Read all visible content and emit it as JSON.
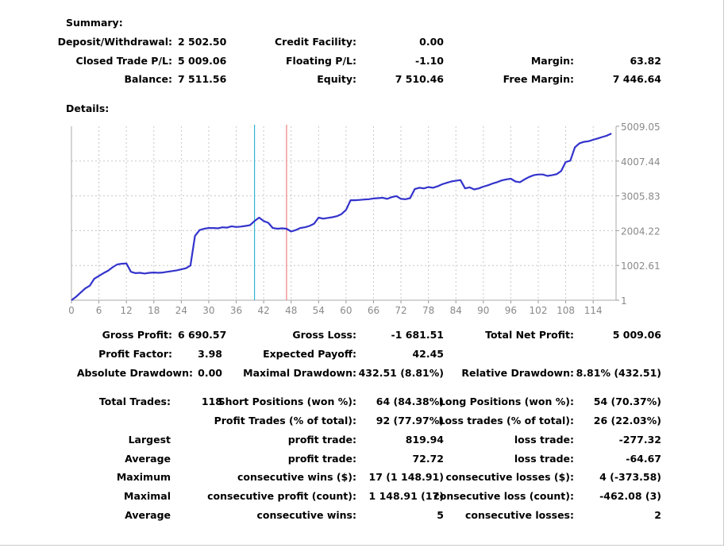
{
  "summary": {
    "heading": "Summary:",
    "deposit_label": "Deposit/Withdrawal:",
    "deposit_value": "2 502.50",
    "credit_label": "Credit Facility:",
    "credit_value": "0.00",
    "closed_label": "Closed Trade P/L:",
    "closed_value": "5 009.06",
    "floating_label": "Floating P/L:",
    "floating_value": "-1.10",
    "margin_label": "Margin:",
    "margin_value": "63.82",
    "balance_label": "Balance:",
    "balance_value": "7 511.56",
    "equity_label": "Equity:",
    "equity_value": "7 510.46",
    "free_margin_label": "Free Margin:",
    "free_margin_value": "7 446.64"
  },
  "details": {
    "heading": "Details:",
    "gross_profit_label": "Gross Profit:",
    "gross_profit_value": "6 690.57",
    "gross_loss_label": "Gross Loss:",
    "gross_loss_value": "-1 681.51",
    "net_profit_label": "Total Net Profit:",
    "net_profit_value": "5 009.06",
    "profit_factor_label": "Profit Factor:",
    "profit_factor_value": "3.98",
    "expected_payoff_label": "Expected Payoff:",
    "expected_payoff_value": "42.45",
    "abs_dd_label": "Absolute Drawdown:",
    "abs_dd_value": "0.00",
    "max_dd_label": "Maximal Drawdown:",
    "max_dd_value": "432.51 (8.81%)",
    "rel_dd_label": "Relative Drawdown:",
    "rel_dd_value": "8.81% (432.51)",
    "total_trades_label": "Total Trades:",
    "total_trades_value": "118",
    "short_label": "Short Positions (won %):",
    "short_value": "64 (84.38%)",
    "long_label": "Long Positions (won %):",
    "long_value": "54 (70.37%)",
    "profit_trades_label": "Profit Trades (% of total):",
    "profit_trades_value": "92 (77.97%)",
    "loss_trades_label": "Loss trades (% of total):",
    "loss_trades_value": "26 (22.03%)",
    "largest_label": "Largest",
    "largest_profit_label": "profit trade:",
    "largest_profit_value": "819.94",
    "largest_loss_label": "loss trade:",
    "largest_loss_value": "-277.32",
    "average_label": "Average",
    "average_profit_label": "profit trade:",
    "average_profit_value": "72.72",
    "average_loss_label": "loss trade:",
    "average_loss_value": "-64.67",
    "maximum_label": "Maximum",
    "max_wins_label": "consecutive wins ($):",
    "max_wins_value": "17 (1 148.91)",
    "max_losses_label": "consecutive losses ($):",
    "max_losses_value": "4 (-373.58)",
    "maximal_label": "Maximal",
    "maximal_profit_label": "consecutive profit (count):",
    "maximal_profit_value": "1 148.91 (17)",
    "maximal_loss_label": "consecutive loss (count):",
    "maximal_loss_value": "-462.08 (3)",
    "average2_label": "Average",
    "avg_wins_label": "consecutive wins:",
    "avg_wins_value": "5",
    "avg_losses_label": "consecutive losses:",
    "avg_losses_value": "2"
  },
  "colors": {
    "line": "#3333cc",
    "marker1": "#33b5d4",
    "marker2": "#f08080",
    "grid": "#c8c8c8",
    "axis_text": "#8a8a8a"
  },
  "chart_data": {
    "type": "line",
    "xlabel": "",
    "ylabel": "",
    "xlim": [
      0,
      119
    ],
    "ylim": [
      1,
      5009.05
    ],
    "x_ticks": [
      "0",
      "6",
      "12",
      "18",
      "24",
      "30",
      "36",
      "42",
      "48",
      "54",
      "60",
      "66",
      "72",
      "78",
      "84",
      "90",
      "96",
      "102",
      "108",
      "114"
    ],
    "y_ticks": [
      "5009.05",
      "4007.44",
      "3005.83",
      "2004.22",
      "1002.61",
      "1"
    ],
    "vertical_markers": [
      40,
      47
    ],
    "grid": true,
    "series": [
      {
        "x": [
          0,
          1,
          2,
          3,
          4,
          5,
          6,
          7,
          8,
          9,
          10,
          11,
          12,
          13,
          14,
          15,
          16,
          17,
          18,
          19,
          20,
          21,
          22,
          23,
          24,
          25,
          26,
          27,
          28,
          29,
          30,
          31,
          32,
          33,
          34,
          35,
          36,
          37,
          38,
          39,
          40,
          41,
          42,
          43,
          44,
          45,
          46,
          47,
          48,
          49,
          50,
          51,
          52,
          53,
          54,
          55,
          56,
          57,
          58,
          59,
          60,
          61,
          62,
          63,
          64,
          65,
          66,
          67,
          68,
          69,
          70,
          71,
          72,
          73,
          74,
          75,
          76,
          77,
          78,
          79,
          80,
          81,
          82,
          83,
          84,
          85,
          86,
          87,
          88,
          89,
          90,
          91,
          92,
          93,
          94,
          95,
          96,
          97,
          98,
          99,
          100,
          101,
          102,
          103,
          104,
          105,
          106,
          107,
          108,
          109,
          110,
          111,
          112,
          113,
          114,
          115,
          116,
          117,
          118
        ],
        "y": [
          1,
          100,
          220,
          340,
          420,
          620,
          700,
          780,
          850,
          950,
          1030,
          1050,
          1060,
          820,
          780,
          790,
          770,
          790,
          800,
          790,
          800,
          820,
          840,
          860,
          890,
          920,
          1000,
          1850,
          2020,
          2060,
          2080,
          2080,
          2070,
          2100,
          2090,
          2130,
          2110,
          2120,
          2140,
          2160,
          2280,
          2380,
          2280,
          2230,
          2080,
          2060,
          2070,
          2060,
          1980,
          2020,
          2080,
          2100,
          2140,
          2200,
          2380,
          2350,
          2370,
          2390,
          2420,
          2480,
          2600,
          2880,
          2880,
          2890,
          2900,
          2910,
          2930,
          2940,
          2950,
          2920,
          2970,
          3000,
          2920,
          2910,
          2940,
          3200,
          3240,
          3220,
          3260,
          3240,
          3280,
          3340,
          3380,
          3420,
          3440,
          3460,
          3220,
          3250,
          3190,
          3220,
          3270,
          3310,
          3360,
          3400,
          3450,
          3480,
          3500,
          3420,
          3400,
          3480,
          3550,
          3600,
          3620,
          3620,
          3580,
          3600,
          3630,
          3720,
          3980,
          4020,
          4400,
          4520,
          4560,
          4580,
          4620,
          4660,
          4700,
          4740,
          4800
        ]
      }
    ]
  }
}
